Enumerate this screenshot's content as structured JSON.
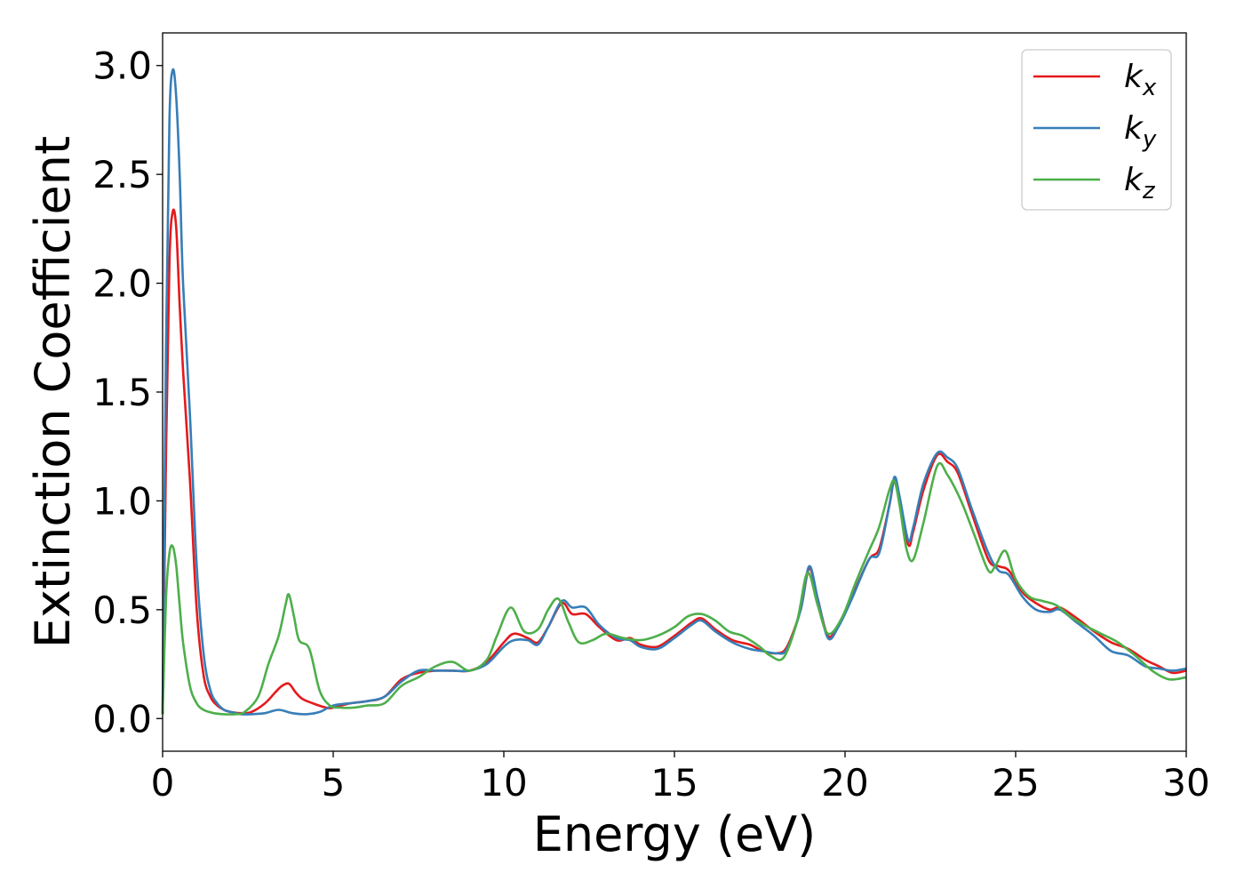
{
  "chart_data": {
    "type": "line",
    "xlabel": "Energy (eV)",
    "ylabel": "Extinction Coefficient",
    "xlim": [
      0,
      30
    ],
    "ylim": [
      -0.15,
      3.15
    ],
    "xticks": [
      "0",
      "5",
      "10",
      "15",
      "20",
      "25",
      "30"
    ],
    "yticks": [
      "0.0",
      "0.5",
      "1.0",
      "1.5",
      "2.0",
      "2.5",
      "3.0"
    ],
    "grid": false,
    "legend_position": "top-right",
    "series": [
      {
        "name": "k_x",
        "legend_main": "k",
        "legend_sub": "x",
        "color": "#e41a1c",
        "x": [
          0.0,
          0.1,
          0.2,
          0.3,
          0.4,
          0.5,
          0.6,
          0.8,
          1.0,
          1.2,
          1.4,
          1.6,
          1.8,
          2.0,
          2.3,
          2.6,
          3.0,
          3.3,
          3.5,
          3.7,
          3.9,
          4.1,
          4.4,
          4.8,
          5.0,
          5.5,
          6.0,
          6.5,
          7.0,
          7.5,
          8.0,
          8.5,
          9.0,
          9.5,
          10.0,
          10.3,
          10.7,
          11.0,
          11.3,
          11.7,
          12.0,
          12.4,
          12.8,
          13.3,
          13.7,
          14.0,
          14.5,
          15.0,
          15.5,
          15.8,
          16.2,
          16.7,
          17.2,
          17.6,
          18.0,
          18.3,
          18.7,
          18.95,
          19.2,
          19.5,
          19.8,
          20.2,
          20.7,
          21.0,
          21.3,
          21.45,
          21.6,
          21.85,
          22.0,
          22.3,
          22.7,
          23.0,
          23.3,
          23.7,
          24.2,
          24.5,
          24.8,
          25.2,
          25.6,
          26.0,
          26.3,
          26.8,
          27.3,
          27.8,
          28.3,
          28.8,
          29.2,
          29.6,
          30.0
        ],
        "y": [
          0.02,
          1.2,
          2.1,
          2.33,
          2.25,
          1.9,
          1.6,
          1.1,
          0.5,
          0.2,
          0.1,
          0.06,
          0.04,
          0.03,
          0.025,
          0.03,
          0.07,
          0.12,
          0.15,
          0.16,
          0.12,
          0.09,
          0.07,
          0.05,
          0.05,
          0.07,
          0.08,
          0.1,
          0.18,
          0.21,
          0.22,
          0.22,
          0.22,
          0.26,
          0.35,
          0.39,
          0.37,
          0.35,
          0.42,
          0.53,
          0.48,
          0.48,
          0.42,
          0.36,
          0.37,
          0.34,
          0.33,
          0.38,
          0.44,
          0.46,
          0.41,
          0.36,
          0.34,
          0.31,
          0.3,
          0.33,
          0.5,
          0.69,
          0.55,
          0.38,
          0.43,
          0.56,
          0.73,
          0.78,
          0.98,
          1.1,
          1.0,
          0.8,
          0.86,
          1.05,
          1.21,
          1.18,
          1.13,
          0.95,
          0.73,
          0.7,
          0.68,
          0.58,
          0.53,
          0.5,
          0.51,
          0.46,
          0.4,
          0.35,
          0.32,
          0.27,
          0.24,
          0.21,
          0.22
        ]
      },
      {
        "name": "k_y",
        "legend_main": "k",
        "legend_sub": "y",
        "color": "#377eb8",
        "x": [
          0.0,
          0.1,
          0.2,
          0.3,
          0.4,
          0.5,
          0.6,
          0.8,
          1.0,
          1.2,
          1.4,
          1.6,
          1.8,
          2.0,
          2.3,
          2.6,
          3.0,
          3.4,
          3.8,
          4.2,
          4.6,
          5.0,
          5.5,
          6.0,
          6.5,
          7.0,
          7.5,
          8.0,
          8.5,
          9.0,
          9.5,
          10.0,
          10.3,
          10.7,
          11.0,
          11.3,
          11.7,
          12.0,
          12.4,
          12.8,
          13.3,
          13.7,
          14.0,
          14.5,
          15.0,
          15.5,
          15.8,
          16.2,
          16.7,
          17.2,
          17.6,
          18.0,
          18.3,
          18.7,
          18.95,
          19.2,
          19.5,
          19.8,
          20.2,
          20.7,
          21.0,
          21.3,
          21.45,
          21.6,
          21.85,
          22.0,
          22.3,
          22.7,
          23.0,
          23.3,
          23.7,
          24.2,
          24.5,
          24.8,
          25.2,
          25.6,
          26.0,
          26.3,
          26.8,
          27.3,
          27.8,
          28.3,
          28.8,
          29.2,
          29.6,
          30.0
        ],
        "y": [
          0.02,
          1.7,
          2.75,
          2.98,
          2.85,
          2.5,
          2.0,
          1.4,
          0.7,
          0.3,
          0.13,
          0.07,
          0.04,
          0.03,
          0.02,
          0.02,
          0.025,
          0.04,
          0.025,
          0.02,
          0.03,
          0.06,
          0.07,
          0.08,
          0.1,
          0.17,
          0.22,
          0.22,
          0.22,
          0.22,
          0.25,
          0.33,
          0.36,
          0.36,
          0.34,
          0.42,
          0.54,
          0.51,
          0.51,
          0.43,
          0.37,
          0.36,
          0.33,
          0.32,
          0.37,
          0.43,
          0.45,
          0.4,
          0.35,
          0.32,
          0.31,
          0.3,
          0.32,
          0.5,
          0.7,
          0.55,
          0.37,
          0.42,
          0.55,
          0.73,
          0.76,
          0.98,
          1.11,
          1.02,
          0.82,
          0.88,
          1.08,
          1.22,
          1.2,
          1.15,
          0.97,
          0.76,
          0.68,
          0.66,
          0.56,
          0.5,
          0.49,
          0.5,
          0.44,
          0.38,
          0.31,
          0.29,
          0.24,
          0.23,
          0.22,
          0.23
        ]
      },
      {
        "name": "k_z",
        "legend_main": "k",
        "legend_sub": "z",
        "color": "#4daf4a",
        "x": [
          0.0,
          0.1,
          0.2,
          0.3,
          0.4,
          0.5,
          0.6,
          0.8,
          1.0,
          1.2,
          1.5,
          1.8,
          2.1,
          2.4,
          2.8,
          3.1,
          3.4,
          3.6,
          3.7,
          3.85,
          4.0,
          4.3,
          4.6,
          4.9,
          5.2,
          5.6,
          6.0,
          6.5,
          7.0,
          7.5,
          8.0,
          8.5,
          9.0,
          9.5,
          9.8,
          10.2,
          10.6,
          11.0,
          11.3,
          11.6,
          11.9,
          12.2,
          12.6,
          13.0,
          13.5,
          14.0,
          14.5,
          15.0,
          15.4,
          15.8,
          16.2,
          16.6,
          17.0,
          17.5,
          17.8,
          18.2,
          18.6,
          18.9,
          19.2,
          19.5,
          19.9,
          20.3,
          20.7,
          21.0,
          21.3,
          21.45,
          21.6,
          21.8,
          22.0,
          22.3,
          22.7,
          23.0,
          23.4,
          23.8,
          24.2,
          24.4,
          24.7,
          25.0,
          25.4,
          25.8,
          26.2,
          26.6,
          27.0,
          27.5,
          28.0,
          28.5,
          29.0,
          29.5,
          30.0
        ],
        "y": [
          0.02,
          0.55,
          0.76,
          0.79,
          0.7,
          0.52,
          0.35,
          0.15,
          0.07,
          0.04,
          0.025,
          0.02,
          0.02,
          0.03,
          0.1,
          0.25,
          0.38,
          0.52,
          0.57,
          0.47,
          0.36,
          0.32,
          0.13,
          0.06,
          0.05,
          0.05,
          0.06,
          0.07,
          0.15,
          0.19,
          0.24,
          0.26,
          0.22,
          0.27,
          0.38,
          0.51,
          0.4,
          0.41,
          0.5,
          0.55,
          0.44,
          0.35,
          0.36,
          0.39,
          0.37,
          0.36,
          0.38,
          0.42,
          0.47,
          0.48,
          0.45,
          0.4,
          0.38,
          0.33,
          0.29,
          0.28,
          0.45,
          0.67,
          0.52,
          0.39,
          0.46,
          0.62,
          0.77,
          0.88,
          1.05,
          1.09,
          0.98,
          0.78,
          0.73,
          0.9,
          1.16,
          1.12,
          1.0,
          0.84,
          0.68,
          0.7,
          0.77,
          0.64,
          0.56,
          0.54,
          0.52,
          0.47,
          0.43,
          0.39,
          0.35,
          0.29,
          0.22,
          0.18,
          0.19
        ]
      }
    ]
  }
}
